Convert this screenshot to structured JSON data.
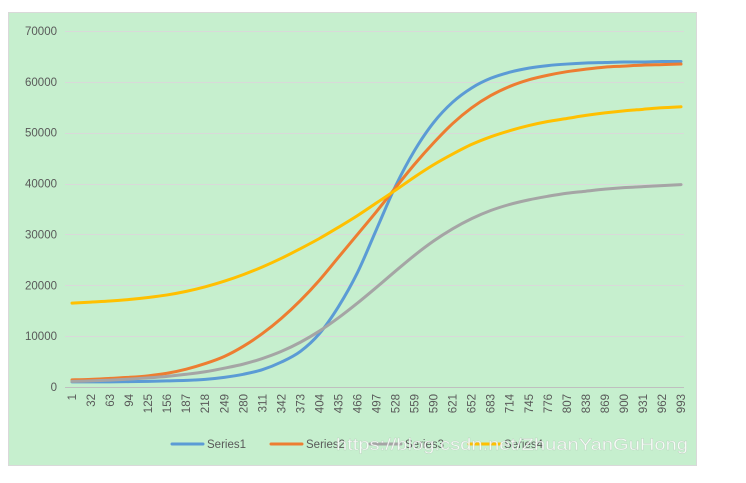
{
  "chart_data": {
    "type": "line",
    "categories": [
      1,
      32,
      63,
      94,
      125,
      156,
      187,
      218,
      249,
      280,
      311,
      342,
      373,
      404,
      435,
      466,
      497,
      528,
      559,
      590,
      621,
      652,
      683,
      714,
      745,
      776,
      807,
      838,
      869,
      900,
      931,
      962,
      993
    ],
    "ylim": [
      0,
      70000
    ],
    "yticks": [
      0,
      10000,
      20000,
      30000,
      40000,
      50000,
      60000,
      70000
    ],
    "grid": "horizontal",
    "legend": "bottom",
    "background": "#c6efce",
    "series": [
      {
        "name": "Series1",
        "color": "#5b9bd5",
        "values": [
          1000,
          1000,
          1000,
          1050,
          1100,
          1200,
          1300,
          1500,
          1900,
          2500,
          3400,
          4900,
          7000,
          10500,
          15800,
          22500,
          31000,
          39500,
          46500,
          52000,
          56000,
          58800,
          60700,
          61900,
          62700,
          63200,
          63500,
          63700,
          63800,
          63900,
          63900,
          64000,
          64000
        ]
      },
      {
        "name": "Series2",
        "color": "#ed7d31",
        "values": [
          1400,
          1500,
          1700,
          1900,
          2200,
          2700,
          3500,
          4600,
          6000,
          8000,
          10500,
          13500,
          17000,
          21000,
          25500,
          30000,
          34500,
          39200,
          43800,
          48000,
          51800,
          54900,
          57300,
          59100,
          60400,
          61300,
          62000,
          62500,
          62900,
          63100,
          63300,
          63400,
          63500
        ]
      },
      {
        "name": "Series3",
        "color": "#a5a5a5",
        "values": [
          1100,
          1200,
          1350,
          1550,
          1800,
          2100,
          2500,
          3000,
          3700,
          4500,
          5600,
          7000,
          8800,
          11000,
          13600,
          16500,
          19600,
          22800,
          25900,
          28700,
          31100,
          33100,
          34700,
          35900,
          36800,
          37500,
          38100,
          38500,
          38900,
          39200,
          39400,
          39600,
          39800
        ]
      },
      {
        "name": "Series4",
        "color": "#ffc000",
        "values": [
          16500,
          16700,
          16900,
          17200,
          17600,
          18100,
          18800,
          19700,
          20800,
          22100,
          23600,
          25300,
          27200,
          29200,
          31400,
          33700,
          36200,
          38700,
          41300,
          43700,
          45800,
          47700,
          49200,
          50400,
          51400,
          52200,
          52800,
          53400,
          53900,
          54300,
          54600,
          54900,
          55100
        ]
      }
    ]
  },
  "watermark": "https://blog.csdn.net/ZhuanYanGuHong"
}
